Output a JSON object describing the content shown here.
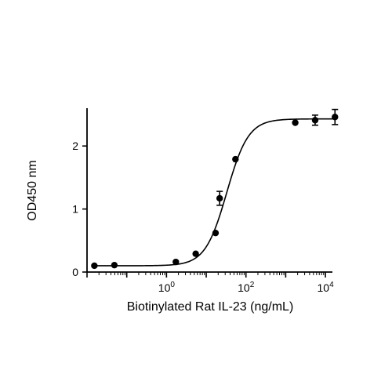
{
  "chart_data": {
    "type": "scatter",
    "title": "",
    "xlabel": "Biotinylated Rat IL-23 (ng/mL)",
    "ylabel": "OD450 nm",
    "xscale": "log",
    "xlim": [
      0.01,
      15000
    ],
    "ylim": [
      0,
      2.6
    ],
    "x_ticks": [
      {
        "value": 1,
        "base": "10",
        "exp": "0"
      },
      {
        "value": 100,
        "base": "10",
        "exp": "2"
      },
      {
        "value": 10000,
        "base": "10",
        "exp": "4"
      }
    ],
    "y_ticks": [
      {
        "value": 0,
        "label": "0"
      },
      {
        "value": 1,
        "label": "1"
      },
      {
        "value": 2,
        "label": "2"
      }
    ],
    "grid": false,
    "legend": "none",
    "series": [
      {
        "points": [
          {
            "x": 0.0153,
            "y": 0.1,
            "err": 0
          },
          {
            "x": 0.0488,
            "y": 0.11,
            "err": 0
          },
          {
            "x": 1.72,
            "y": 0.16,
            "err": 0
          },
          {
            "x": 5.44,
            "y": 0.29,
            "err": 0
          },
          {
            "x": 17.2,
            "y": 0.62,
            "err": 0
          },
          {
            "x": 21.8,
            "y": 1.17,
            "err": 0.11
          },
          {
            "x": 54.4,
            "y": 1.79,
            "err": 0
          },
          {
            "x": 1740,
            "y": 2.37,
            "err": 0
          },
          {
            "x": 5510,
            "y": 2.41,
            "err": 0.08
          },
          {
            "x": 17400,
            "y": 2.46,
            "err": 0.12
          }
        ]
      }
    ],
    "fit": {
      "type": "4PL",
      "bottom": 0.1,
      "top": 2.43,
      "ec50": 33,
      "hill": 1.6
    }
  }
}
